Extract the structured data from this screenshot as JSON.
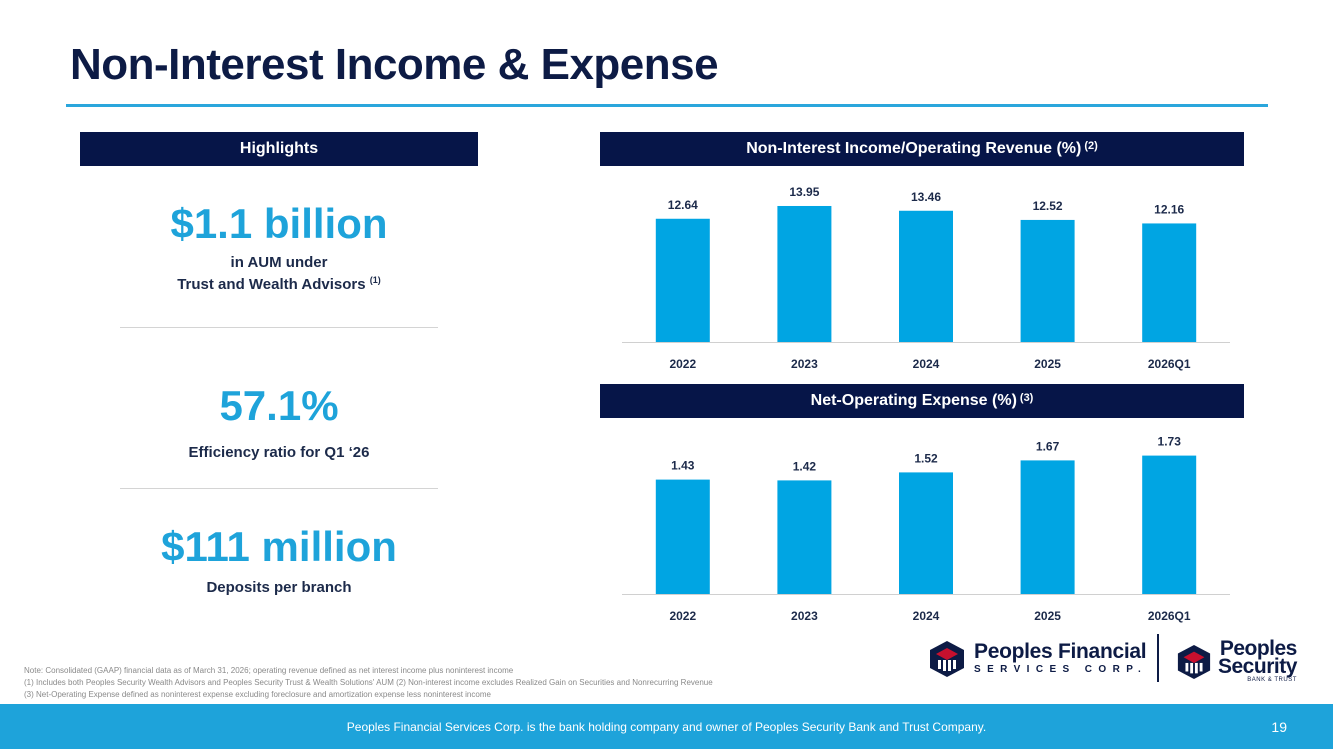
{
  "title": "Non-Interest Income & Expense",
  "highlights": {
    "header": "Highlights",
    "items": [
      {
        "value": "$1.1 billion",
        "line1": "in AUM under",
        "line2": "Trust and Wealth Advisors",
        "note": "(1)"
      },
      {
        "value": "57.1%",
        "line1": "Efficiency ratio for Q1 ‘26"
      },
      {
        "value": "$111 million",
        "line1": "Deposits per branch"
      }
    ]
  },
  "chart_data": [
    {
      "type": "bar",
      "title": "Non-Interest Income/Operating Revenue (%)",
      "title_note": "(2)",
      "categories": [
        "2022",
        "2023",
        "2024",
        "2025",
        "2026Q1"
      ],
      "values": [
        12.64,
        13.95,
        13.46,
        12.52,
        12.16
      ],
      "value_labels": [
        "12.64",
        "13.95",
        "13.46",
        "12.52",
        "12.16"
      ],
      "ylim": [
        0,
        16
      ],
      "color": "#00a5e3",
      "grid": false
    },
    {
      "type": "bar",
      "title": "Net-Operating Expense (%)",
      "title_note": "(3)",
      "categories": [
        "2022",
        "2023",
        "2024",
        "2025",
        "2026Q1"
      ],
      "values": [
        1.43,
        1.42,
        1.52,
        1.67,
        1.73
      ],
      "value_labels": [
        "1.43",
        "1.42",
        "1.52",
        "1.67",
        "1.73"
      ],
      "ylim": [
        0,
        1.95
      ],
      "color": "#00a5e3",
      "grid": false
    }
  ],
  "notes": [
    "Note: Consolidated (GAAP) financial data as of March 31, 2026; operating revenue defined as net interest income plus noninterest income",
    "(1) Includes both Peoples Security Wealth Advisors and Peoples Security Trust & Wealth Solutions' AUM (2) Non-interest income excludes Realized Gain on Securities and Nonrecurring Revenue",
    "(3) Net-Operating Expense defined as noninterest expense excluding foreclosure and amortization expense less noninterest income"
  ],
  "logos": {
    "pf_main": "Peoples Financial",
    "pf_sub": "SERVICES CORP.",
    "ps_line1": "Peoples",
    "ps_line2": "Security",
    "ps_tag": "BANK & TRUST"
  },
  "footer": {
    "text": "Peoples Financial Services Corp. is the bank holding company and owner of Peoples Security Bank and Trust Company.",
    "page": "19"
  },
  "colors": {
    "navy": "#061548",
    "accent": "#1ea3da",
    "bar": "#00a5e3"
  }
}
